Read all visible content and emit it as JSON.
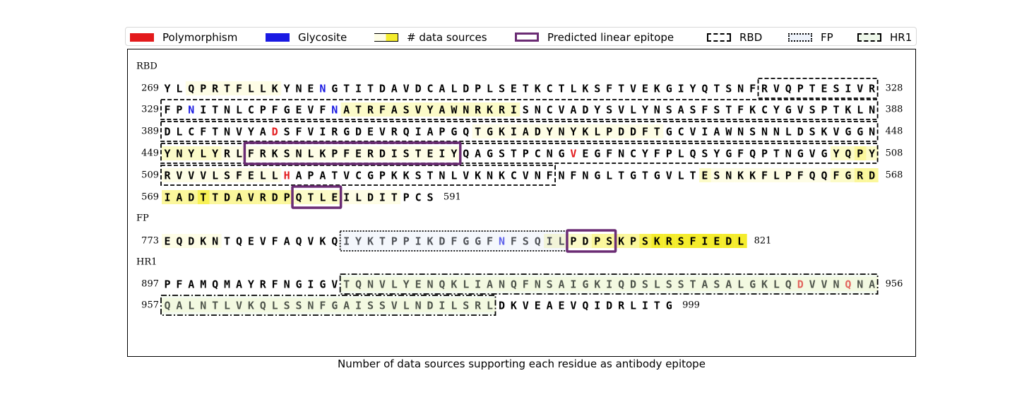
{
  "legend": {
    "polymorphism": "Polymorphism",
    "glycosite": "Glycosite",
    "data_sources": "# data sources",
    "epitope": "Predicted linear epitope",
    "rbd": "RBD",
    "fp": "FP",
    "hr1": "HR1"
  },
  "caption": "Number of data sources supporting each residue as antibody epitope",
  "colors": {
    "polymorphism": "#e31a1c",
    "glycosite": "#1a1ae3",
    "epitope_box": "#6b2c74",
    "level0": "#ffffff",
    "level1": "#fefde6",
    "level2": "#fcfbc8",
    "level3": "#fbf79c",
    "level4": "#f8f156",
    "level5": "#f4ec2c"
  },
  "sections": [
    {
      "name": "RBD",
      "rows": [
        {
          "start": "269",
          "end": "328",
          "seq": "YLQPRTFLLKYNENGTITDAVDCALDPLSETKCTLKSFTVEKGIYQTSNFRVQPTESIVR",
          "shade": "001111111100000000000000000000000000000000000000000000000000"
        },
        {
          "start": "329",
          "end": "388",
          "seq": "FPNITNLCPFGEVFNATRFASVYAWNRKRISNCVADYSVLYNSASFSTFKCYGVSPTKLN",
          "shade": "000000000000000222222222222222000000000000000000000000000000"
        },
        {
          "start": "389",
          "end": "448",
          "seq": "DLCFTNVYADSFVIRGDEVRQIAPGQTGKIADYNYKLPDDFTGCVIAWNSNNLDSKVGGN",
          "shade": "000000000000000000000000001111111111111111000000000000000000"
        },
        {
          "start": "449",
          "end": "508",
          "seq": "YNYLYRLFRKSNLKPFERDISTEIYQAGSTPCNGVEGFNCYFPLQSYGFQPTNGVGYQPY",
          "shade": "222221111111111111111111100000000000000000000000000000002232"
        },
        {
          "start": "509",
          "end": "568",
          "seq": "RVVVLSFELLHAPATVCGPKKSTNLVKNKCVNFNFNGLTGTGVLTESNKKFLPFQQFGRD",
          "shade": "111111111100000000000000000000000000000000000211111111112233"
        },
        {
          "start": "569",
          "end": "591",
          "seq": "IADTTDAVRDPQTLEILDITPCS",
          "shade": "33343333333222211111000"
        }
      ]
    },
    {
      "name": "FP",
      "rows": [
        {
          "start": "773",
          "end": "821",
          "seq": "EQDKNTQEVFAQVKQIYKTPPIKDFGGFNFSQILPDPSKPSKRSFIEDL",
          "shade": "1111100000000000000000000000000022223333455555555"
        }
      ]
    },
    {
      "name": "HR1",
      "rows": [
        {
          "start": "897",
          "end": "956",
          "seq": "PFAMQMAYRFNGIGVTQNVLYENQKLIANQFNSAIGKIQDSLSSTASALGKLQDVVNQNA",
          "shade": "000000000000000111111111111111111111111111111111111111111111"
        },
        {
          "start": "957",
          "end": "999",
          "seq": "QALNTLVKQLSSNFGAISSVLNDILSRLDKVEAEVQIDRLITG",
          "shade": "1111111111111111111111111111000000000000000"
        }
      ]
    }
  ]
}
